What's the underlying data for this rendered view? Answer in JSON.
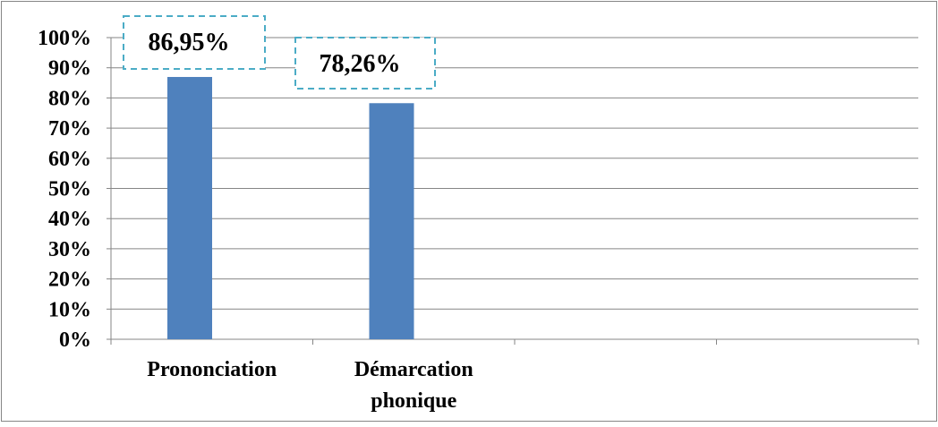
{
  "chart_data": {
    "type": "bar",
    "categories": [
      "Prononciation",
      "Démarcation phonique",
      "",
      ""
    ],
    "category_lines": [
      [
        "Prononciation"
      ],
      [
        "Démarcation",
        "phonique"
      ],
      [],
      []
    ],
    "values": [
      86.95,
      78.26,
      null,
      null
    ],
    "data_labels": [
      "86,95%",
      "78,26%",
      "",
      ""
    ],
    "yticks": [
      "0%",
      "10%",
      "20%",
      "30%",
      "40%",
      "50%",
      "60%",
      "70%",
      "80%",
      "90%",
      "100%"
    ],
    "ylim": [
      0,
      100
    ],
    "title": "",
    "xlabel": "",
    "ylabel": "",
    "grid": true,
    "legend": "none",
    "colors": {
      "bar": "#4f81bd",
      "gridline": "#868686",
      "axis": "#868686",
      "frame": "#868686",
      "label_box_border": "#4bacc6"
    }
  }
}
